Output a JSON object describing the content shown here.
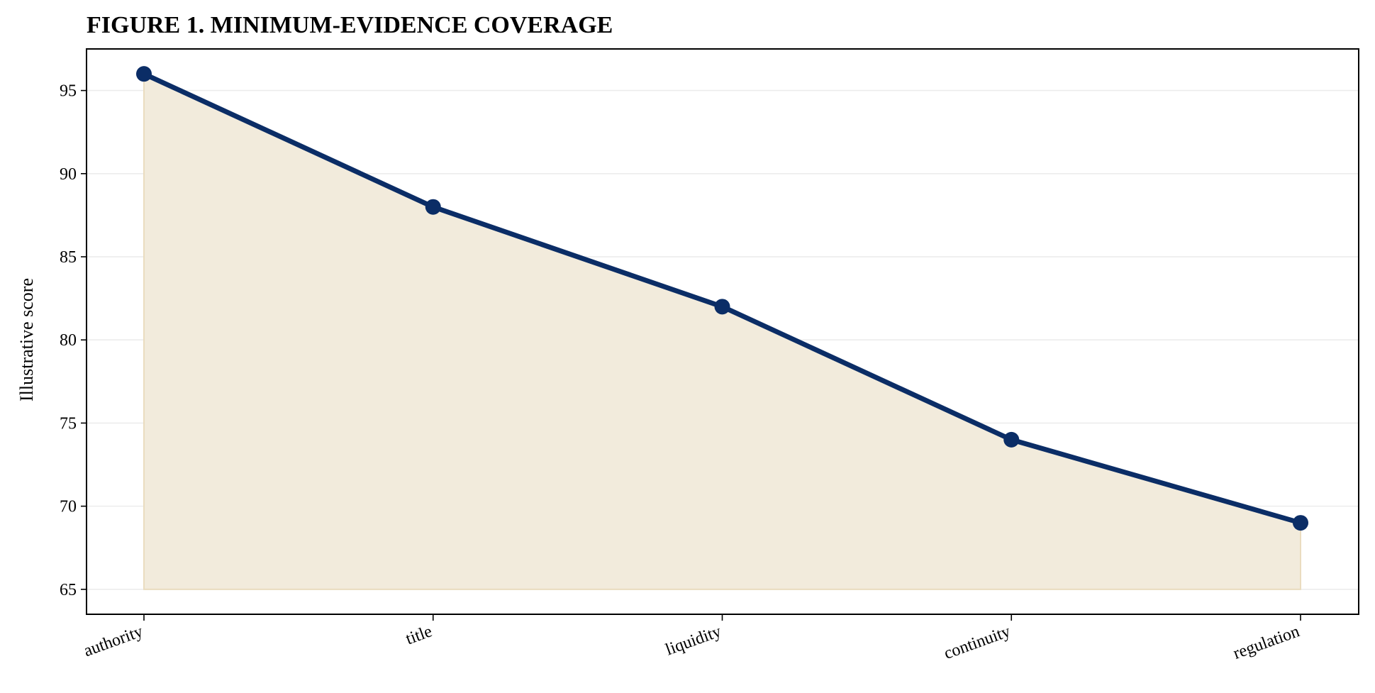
{
  "chart_data": {
    "type": "area",
    "title": "FIGURE 1. MINIMUM-EVIDENCE COVERAGE",
    "xlabel": "",
    "ylabel": "Illustrative score",
    "categories": [
      "authority",
      "title",
      "liquidity",
      "continuity",
      "regulation"
    ],
    "series": [
      {
        "values": [
          96,
          88,
          82,
          74,
          69
        ]
      }
    ],
    "fill_baseline": 65,
    "ylim": [
      63.5,
      97.5
    ],
    "yticks": [
      65,
      70,
      75,
      80,
      85,
      90,
      95
    ],
    "grid": "horizontal",
    "legend": "none",
    "colors": {
      "line": "#0b2d66",
      "fill": "#f2ebdc",
      "fill_edge": "#eadcbf",
      "grid": "#ececec",
      "axis": "#000000"
    }
  }
}
